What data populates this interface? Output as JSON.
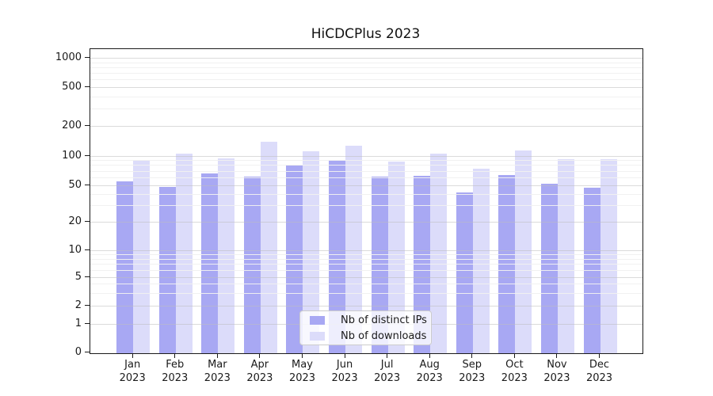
{
  "title": "HiCDCPlus 2023",
  "chart_data": {
    "type": "bar",
    "title": "HiCDCPlus 2023",
    "categories": [
      "Jan 2023",
      "Feb 2023",
      "Mar 2023",
      "Apr 2023",
      "May 2023",
      "Jun 2023",
      "Jul 2023",
      "Aug 2023",
      "Sep 2023",
      "Oct 2023",
      "Nov 2023",
      "Dec 2023"
    ],
    "series": [
      {
        "name": "Nb of distinct IPs",
        "color": "#a8a8f3",
        "values": [
          55,
          48,
          66,
          62,
          80,
          91,
          61,
          63,
          42,
          64,
          52,
          47
        ]
      },
      {
        "name": "Nb of downloads",
        "color": "#dcdcfa",
        "values": [
          91,
          105,
          95,
          140,
          112,
          126,
          88,
          106,
          74,
          113,
          92,
          93
        ]
      }
    ],
    "y_axis": {
      "scale": "pseudo-log",
      "tick_values": [
        1000,
        500,
        200,
        100,
        50,
        20,
        10,
        5,
        2,
        1,
        0
      ],
      "ylim": [
        0,
        1200
      ]
    },
    "x_axis": {
      "tick_year": "2023"
    },
    "grid": true,
    "legend_position": "lower-center-inside",
    "colors": {
      "axis": "#1a1a1a",
      "major_grid": "#cccccc",
      "minor_grid": "#f0f0f0"
    }
  }
}
